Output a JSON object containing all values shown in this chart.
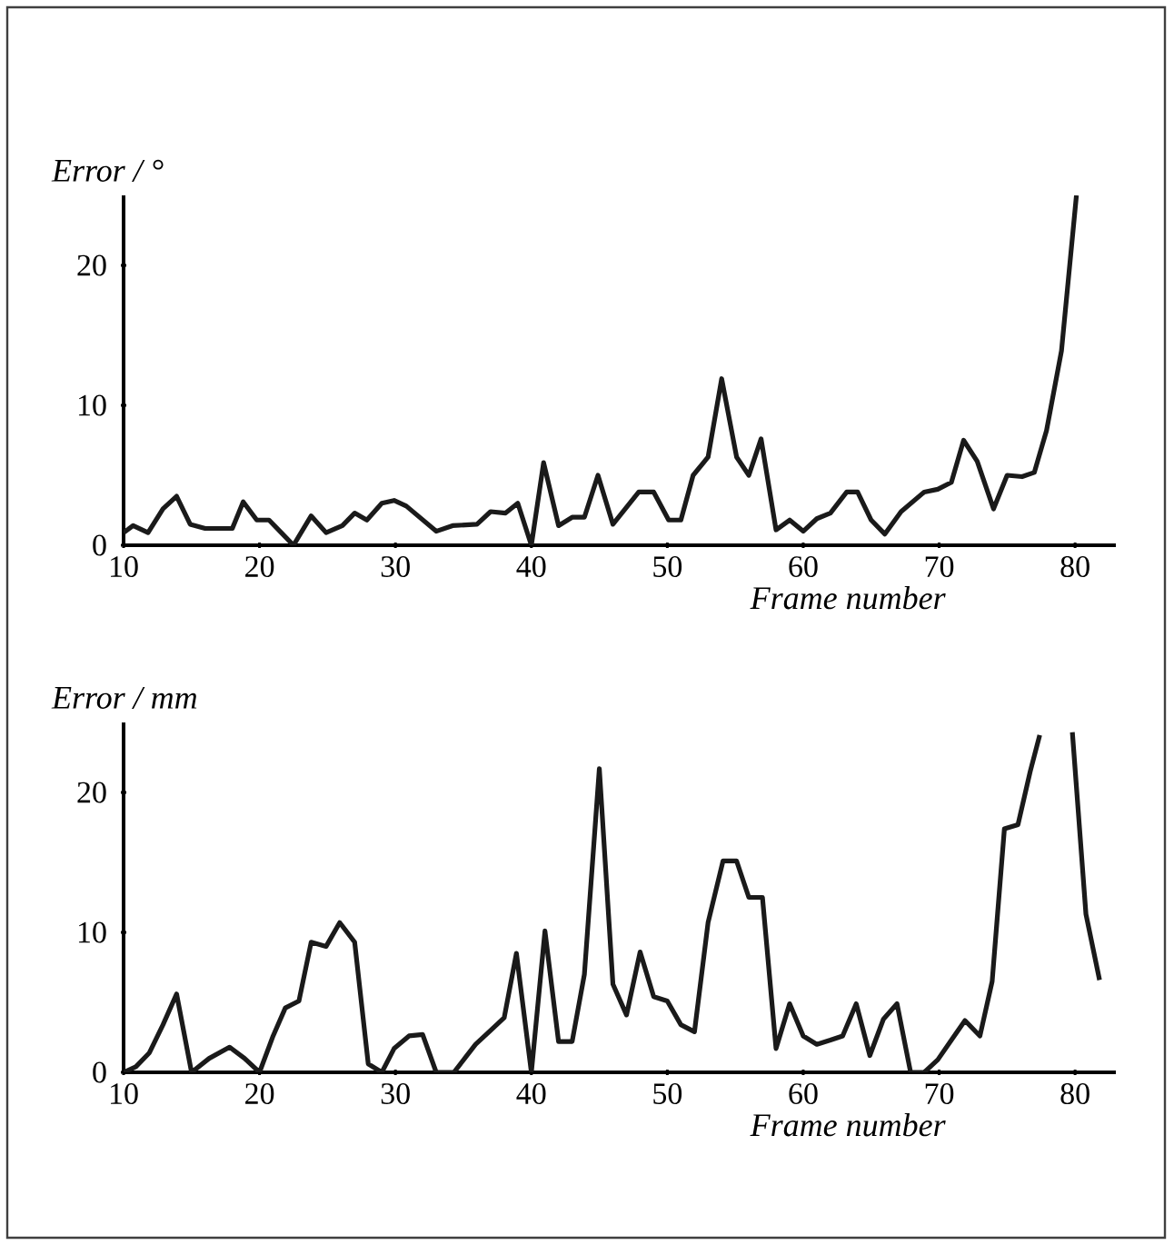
{
  "chart_data": [
    {
      "type": "line",
      "ylabel": "Error / °",
      "xlabel": "Frame number",
      "color": "#1a1a1a",
      "marker": "none",
      "line_style": "solid",
      "xlim": [
        10,
        83
      ],
      "ylim": [
        0,
        25
      ],
      "xticks": [
        10,
        20,
        30,
        40,
        50,
        60,
        70,
        80
      ],
      "yticks": [
        0,
        10,
        20
      ],
      "x": [
        10,
        10.7,
        11.8,
        12.9,
        13.9,
        14.9,
        16,
        18,
        18.8,
        19.8,
        20.7,
        21.6,
        22.5,
        23.8,
        24.9,
        26.1,
        27,
        27.9,
        29,
        29.9,
        30.8,
        33,
        34.2,
        36,
        37,
        38.1,
        39,
        40,
        40.9,
        42,
        43,
        43.9,
        44.9,
        46,
        47.9,
        49,
        50.1,
        51,
        51.9,
        53,
        54,
        55.1,
        56,
        56.9,
        58,
        59,
        60,
        61,
        62,
        63.2,
        64,
        65,
        66,
        67.2,
        68.9,
        69.9,
        70.9,
        71.8,
        72.8,
        74,
        75,
        76.1,
        77,
        77.9,
        79,
        80.1
      ],
      "values": [
        0.9,
        1.4,
        0.9,
        2.6,
        3.5,
        1.5,
        1.2,
        1.2,
        3.1,
        1.8,
        1.8,
        0.9,
        0,
        2.1,
        0.9,
        1.4,
        2.3,
        1.8,
        3.0,
        3.2,
        2.8,
        1.0,
        1.4,
        1.5,
        2.4,
        2.3,
        3.0,
        0,
        5.9,
        1.4,
        2.0,
        2.0,
        5.0,
        1.5,
        3.8,
        3.8,
        1.8,
        1.8,
        5.0,
        6.3,
        11.9,
        6.3,
        5.0,
        7.6,
        1.1,
        1.8,
        1.0,
        1.9,
        2.3,
        3.8,
        3.8,
        1.8,
        0.8,
        2.4,
        3.8,
        4.0,
        4.5,
        7.5,
        6.0,
        2.6,
        5.0,
        4.9,
        5.2,
        8.2,
        13.9,
        25
      ]
    },
    {
      "type": "line",
      "ylabel": "Error / mm",
      "xlabel": "Frame number",
      "color": "#1a1a1a",
      "marker": "none",
      "line_style": "solid",
      "xlim": [
        10,
        83
      ],
      "ylim": [
        0,
        25
      ],
      "xticks": [
        10,
        20,
        30,
        40,
        50,
        60,
        70,
        80
      ],
      "yticks": [
        0,
        10,
        20
      ],
      "x": [
        10,
        10.9,
        11.9,
        12.9,
        13.9,
        15,
        16.3,
        17.8,
        18.9,
        20,
        21,
        21.9,
        22.9,
        23.8,
        24.9,
        25.9,
        27,
        28,
        29,
        29.9,
        31,
        32,
        33,
        34.3,
        35.9,
        37,
        38,
        38.9,
        40,
        41,
        42,
        43,
        43.9,
        45,
        46,
        47,
        48,
        49,
        50,
        51,
        52,
        53,
        54.1,
        55.1,
        56,
        57,
        58,
        59,
        60,
        61,
        62,
        62.9,
        63.9,
        64.9,
        65.9,
        66.9,
        67.9,
        68.9,
        69.9,
        70.9,
        71.9,
        73,
        73.9,
        74.8,
        75.8,
        76.7,
        77.4,
        78.6,
        79.8,
        80.8,
        81.8
      ],
      "values": [
        0,
        0.4,
        1.4,
        3.4,
        5.6,
        0,
        1.0,
        1.8,
        1.0,
        0,
        2.6,
        4.6,
        5.1,
        9.3,
        9.0,
        10.7,
        9.3,
        0.6,
        0,
        1.7,
        2.6,
        2.7,
        0,
        0,
        2.0,
        3.0,
        3.9,
        8.5,
        0,
        10.1,
        2.2,
        2.2,
        7.0,
        21.7,
        6.3,
        4.1,
        8.6,
        5.4,
        5.1,
        3.4,
        2.9,
        10.7,
        15.1,
        15.1,
        12.5,
        12.5,
        1.7,
        4.9,
        2.6,
        2.0,
        2.3,
        2.6,
        4.9,
        1.2,
        3.8,
        4.9,
        0,
        0,
        0.9,
        2.3,
        3.7,
        2.6,
        6.5,
        17.4,
        17.7,
        21.5,
        24.1,
        null,
        24.3,
        11.3,
        6.6
      ]
    }
  ]
}
